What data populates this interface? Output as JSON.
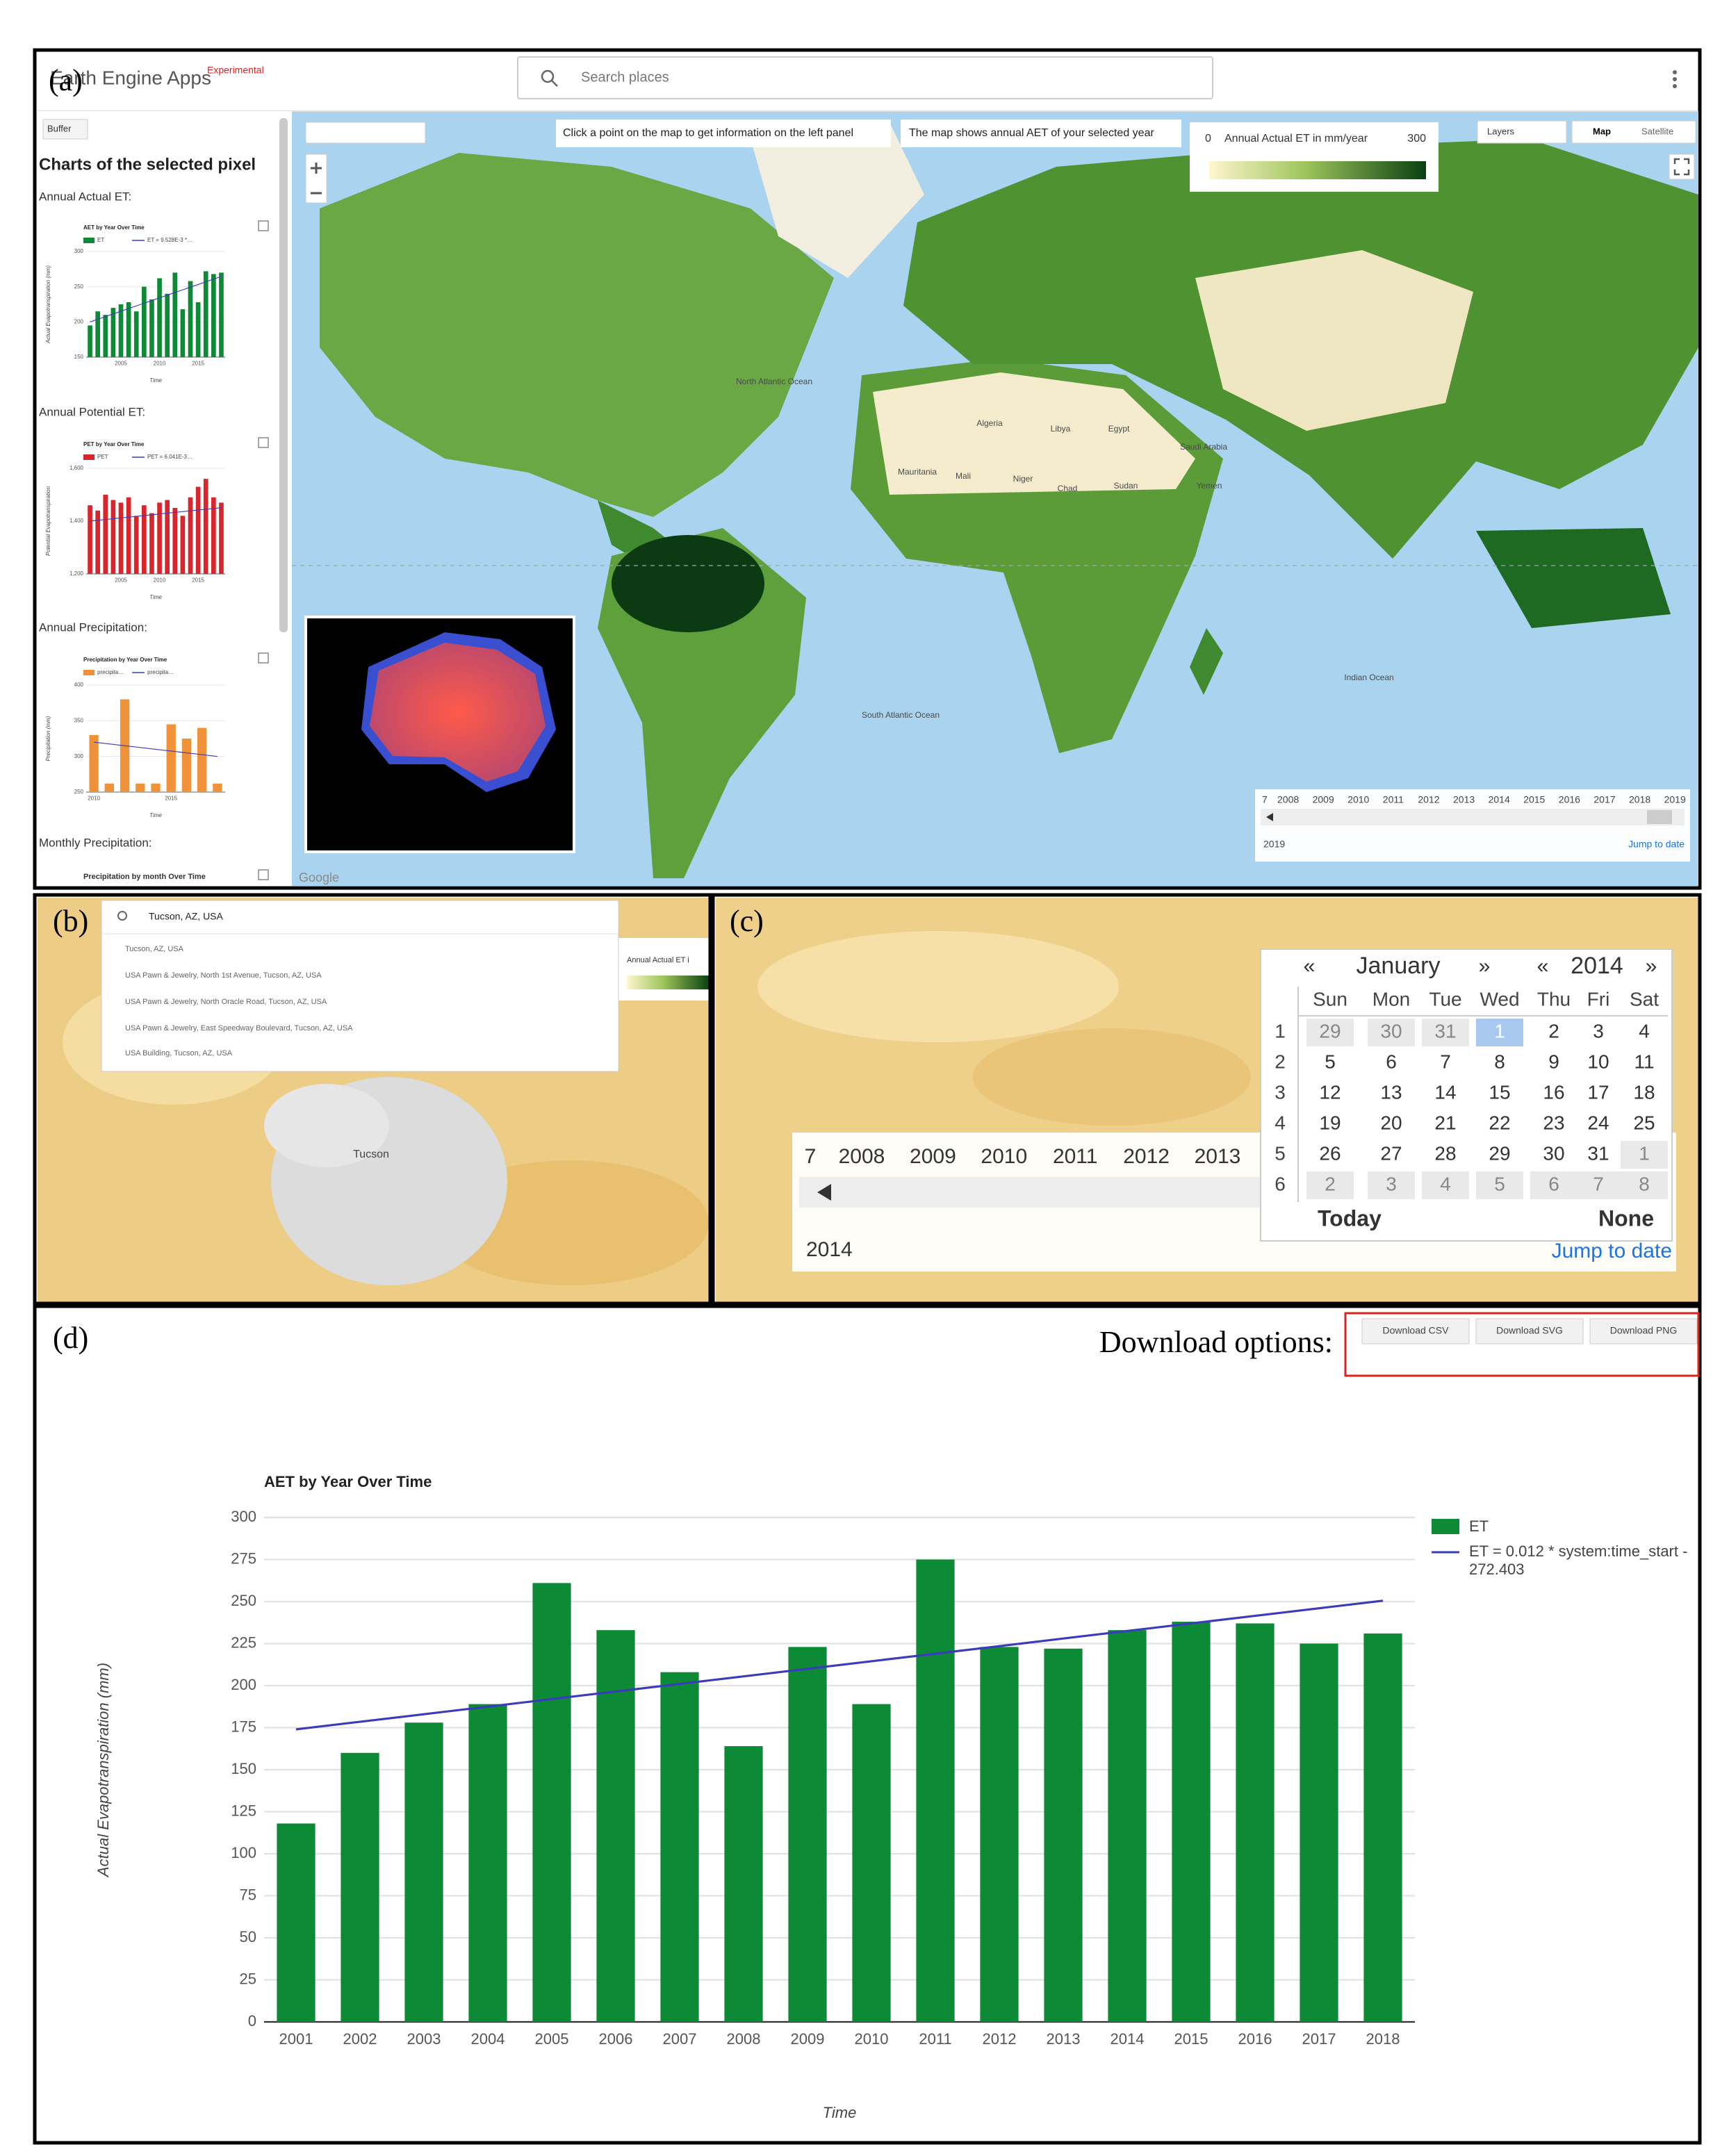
{
  "panel_a": {
    "label": "(a)",
    "app_title": "Earth Engine Apps",
    "badge": "Experimental",
    "search": "Search places",
    "buffer": "Buffer",
    "sidebar_title": "Charts of the selected pixel",
    "sections": [
      "Annual Actual ET:",
      "Annual Potential ET:",
      "Annual Precipitation:",
      "Monthly Precipitation:"
    ],
    "monthly_chart_title": "Precipitation by month Over Time",
    "hints": [
      "Click a point on the map to get information on the left panel",
      "The map shows annual AET of your selected year"
    ],
    "legend": {
      "min": 0,
      "title": "Annual Actual ET in mm/year",
      "max": 300
    },
    "layers": "Layers",
    "map_types": [
      "Map",
      "Satellite"
    ],
    "timeline": {
      "years": [
        7,
        2008,
        2009,
        2010,
        2011,
        2012,
        2013,
        2014,
        2015,
        2016,
        2017,
        2018,
        2019
      ],
      "selected": 2019,
      "jump": "Jump to date"
    },
    "map_labels": [
      "North Atlantic Ocean",
      "South Atlantic Ocean",
      "Indian Ocean",
      "Algeria",
      "Libya",
      "Egypt",
      "Mauritania",
      "Mali",
      "Niger",
      "Chad",
      "Sudan",
      "Saudi Arabia",
      "Yemen"
    ],
    "google": "Google"
  },
  "panel_b": {
    "label": "(b)",
    "search": "Tucson, AZ, USA",
    "suggestions": [
      "Tucson, AZ, USA",
      "USA Pawn & Jewelry, North 1st Avenue, Tucson, AZ, USA",
      "USA Pawn & Jewelry, North Oracle Road, Tucson, AZ, USA",
      "USA Pawn & Jewelry, East Speedway Boulevard, Tucson, AZ, USA",
      "USA Building, Tucson, AZ, USA"
    ],
    "legend_fragment": "Annual Actual ET i",
    "city": "Tucson"
  },
  "panel_c": {
    "label": "(c)",
    "timeline": {
      "years": [
        7,
        2008,
        2009,
        2010,
        2011,
        2012,
        2013
      ],
      "selected": 2014,
      "jump": "Jump to date"
    },
    "calendar": {
      "prev_month": "«",
      "month": "January",
      "next_month": "»",
      "prev_year": "«",
      "year": 2014,
      "next_year": "»",
      "weekdays": [
        "Sun",
        "Mon",
        "Tue",
        "Wed",
        "Thu",
        "Fri",
        "Sat"
      ],
      "weeks": [
        1,
        2,
        3,
        4,
        5,
        6
      ],
      "days": [
        [
          29,
          30,
          31,
          1,
          2,
          3,
          4
        ],
        [
          5,
          6,
          7,
          8,
          9,
          10,
          11
        ],
        [
          12,
          13,
          14,
          15,
          16,
          17,
          18
        ],
        [
          19,
          20,
          21,
          22,
          23,
          24,
          25
        ],
        [
          26,
          27,
          28,
          29,
          30,
          31,
          1
        ],
        [
          2,
          3,
          4,
          5,
          6,
          7,
          8
        ]
      ],
      "selected": 1,
      "today": "Today",
      "none": "None"
    }
  },
  "panel_d": {
    "label": "(d)",
    "download_label": "Download options:",
    "buttons": [
      "Download CSV",
      "Download SVG",
      "Download PNG"
    ]
  },
  "chart_data": [
    {
      "type": "bar",
      "title": "AET by Year Over Time",
      "x_label": "Time",
      "y_label": "Actual Evapotranspiration (mm)",
      "categories": [
        "2001",
        "2002",
        "2003",
        "2004",
        "2005",
        "2006",
        "2007",
        "2008",
        "2009",
        "2010",
        "2011",
        "2012",
        "2013",
        "2014",
        "2015",
        "2016",
        "2017",
        "2018"
      ],
      "series": [
        {
          "name": "ET",
          "color": "#0c8a35",
          "values": [
            118,
            160,
            178,
            189,
            261,
            233,
            208,
            164,
            223,
            189,
            275,
            223,
            222,
            233,
            238,
            237,
            225,
            231
          ]
        },
        {
          "name": "ET = 0.012 * system:time_start - 272.403",
          "type": "line",
          "color": "#3b3bbd",
          "values": [
            174,
            178.5,
            183,
            187.5,
            192,
            196.5,
            201,
            205.5,
            210,
            214.5,
            219,
            223.5,
            228,
            232.5,
            237,
            241.5,
            246,
            250.5
          ]
        }
      ],
      "ylim": [
        0,
        300
      ],
      "yticks": [
        0,
        25,
        50,
        75,
        100,
        125,
        150,
        175,
        200,
        225,
        250,
        275,
        300
      ],
      "grid": true
    },
    {
      "type": "bar",
      "title": "AET by Year Over Time",
      "x_label": "Time",
      "y_label": "Actual Evapotranspiration (mm)",
      "x": [
        2001,
        2002,
        2003,
        2004,
        2005,
        2006,
        2007,
        2008,
        2009,
        2010,
        2011,
        2012,
        2013,
        2014,
        2015,
        2016,
        2017,
        2018
      ],
      "series": [
        {
          "name": "ET",
          "color": "#0c8a35",
          "values": [
            195,
            215,
            210,
            220,
            225,
            228,
            215,
            250,
            232,
            262,
            240,
            270,
            218,
            258,
            228,
            272,
            268,
            270
          ]
        },
        {
          "name": "ET = 9.528E-3 *…",
          "type": "line",
          "color": "#3b3bbd",
          "values": [
            200,
            203.8,
            207.6,
            211.4,
            215.2,
            219,
            222.8,
            226.6,
            230.4,
            234.2,
            238,
            241.8,
            245.6,
            249.4,
            253.2,
            257,
            260.8,
            264.6
          ]
        }
      ],
      "xlim": [
        2000.5,
        2018.5
      ],
      "xticks": [
        2005,
        2010,
        2015
      ],
      "ylim": [
        150,
        300
      ],
      "yticks": [
        150,
        200,
        250,
        300
      ],
      "grid": true
    },
    {
      "type": "bar",
      "title": "PET by Year Over Time",
      "x_label": "Time",
      "y_label": "Potential Evapotranspiration",
      "x": [
        2001,
        2002,
        2003,
        2004,
        2005,
        2006,
        2007,
        2008,
        2009,
        2010,
        2011,
        2012,
        2013,
        2014,
        2015,
        2016,
        2017,
        2018
      ],
      "series": [
        {
          "name": "PET",
          "color": "#d9262c",
          "values": [
            1460,
            1440,
            1500,
            1480,
            1470,
            1490,
            1420,
            1460,
            1430,
            1470,
            1480,
            1450,
            1420,
            1490,
            1530,
            1560,
            1490,
            1470
          ]
        },
        {
          "name": "PET = 6.041E-3…",
          "type": "line",
          "color": "#3b3bbd",
          "values": [
            1400,
            1403,
            1406,
            1409,
            1412,
            1415,
            1418,
            1421,
            1424,
            1427,
            1430,
            1433,
            1436,
            1439,
            1442,
            1445,
            1448,
            1451
          ]
        }
      ],
      "xlim": [
        2000.5,
        2018.5
      ],
      "xticks": [
        2005,
        2010,
        2015
      ],
      "ylim": [
        1200,
        1600
      ],
      "yticks": [
        {
          "value": 1200,
          "label": "1,200"
        },
        {
          "value": 1400,
          "label": "1,400"
        },
        {
          "value": 1600,
          "label": "1,600"
        }
      ],
      "grid": true
    },
    {
      "type": "bar",
      "title": "Precipitation by Year Over Time",
      "x_label": "Time",
      "y_label": "Precipitation (mm)",
      "x": [
        2010,
        2011,
        2012,
        2013,
        2014,
        2015,
        2016,
        2017,
        2018
      ],
      "series": [
        {
          "name": "precipita…",
          "color": "#f0923a",
          "values": [
            330,
            262,
            380,
            262,
            262,
            345,
            325,
            340,
            262
          ]
        },
        {
          "name": "precipita…",
          "type": "line",
          "color": "#3b3bbd",
          "values": [
            320,
            317.5,
            315,
            312.5,
            310,
            307.5,
            305,
            302.5,
            300
          ]
        }
      ],
      "xlim": [
        2009.5,
        2018.5
      ],
      "xticks": [
        2010,
        2015
      ],
      "ylim": [
        250,
        400
      ],
      "yticks": [
        250,
        300,
        350,
        400
      ],
      "grid": true
    }
  ]
}
